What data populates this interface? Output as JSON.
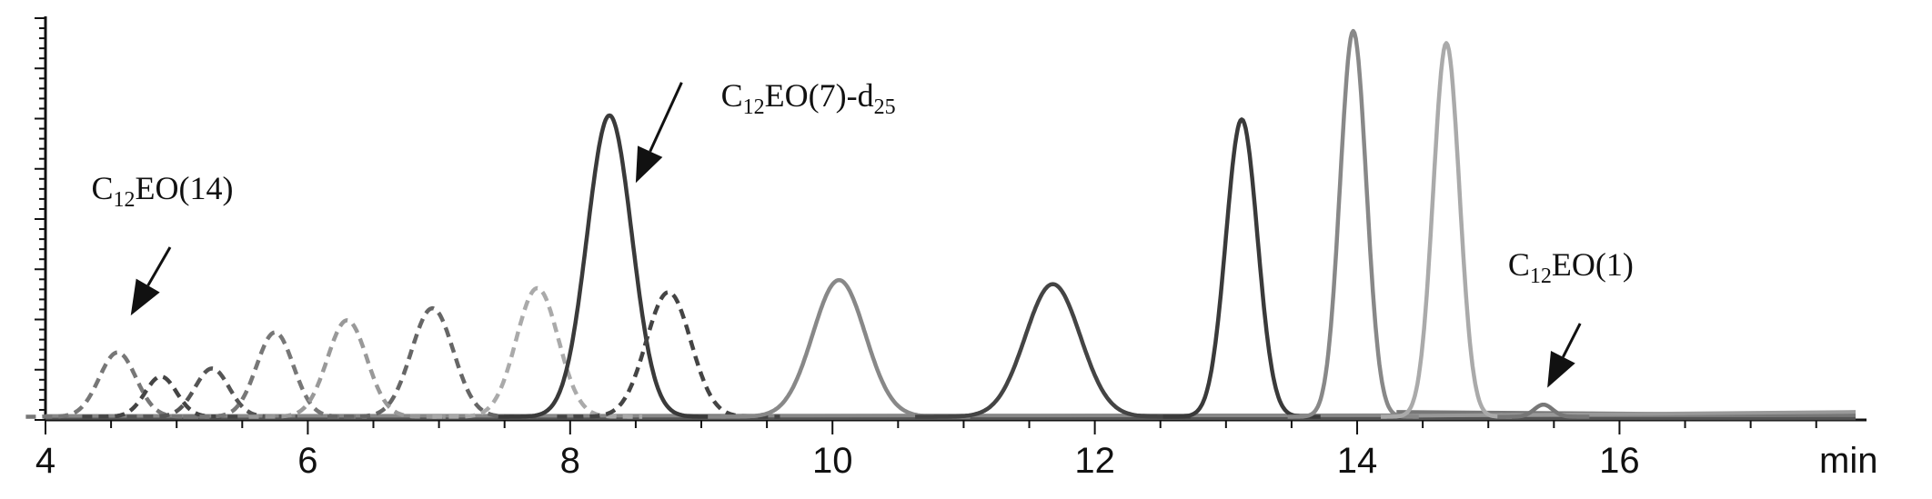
{
  "chart_data": {
    "type": "line",
    "xlabel": "min",
    "ylabel": "",
    "xlim": [
      4,
      17.8
    ],
    "ylim": [
      0,
      1.0
    ],
    "x_ticks": [
      4,
      6,
      8,
      10,
      12,
      14,
      16
    ],
    "x_tick_labels": [
      "4",
      "6",
      "8",
      "10",
      "12",
      "14",
      "16"
    ],
    "grid": false,
    "legend": "none",
    "peaks": [
      {
        "center": 4.55,
        "height": 0.16,
        "width": 0.14,
        "style": "dashed",
        "color": "#777777"
      },
      {
        "center": 4.88,
        "height": 0.1,
        "width": 0.12,
        "style": "dashed",
        "color": "#444444"
      },
      {
        "center": 5.27,
        "height": 0.12,
        "width": 0.13,
        "style": "dashed",
        "color": "#555555"
      },
      {
        "center": 5.75,
        "height": 0.21,
        "width": 0.14,
        "style": "dashed",
        "color": "#777777"
      },
      {
        "center": 6.3,
        "height": 0.24,
        "width": 0.15,
        "style": "dashed",
        "color": "#999999"
      },
      {
        "center": 6.95,
        "height": 0.27,
        "width": 0.16,
        "style": "dashed",
        "color": "#666666"
      },
      {
        "center": 7.75,
        "height": 0.32,
        "width": 0.16,
        "style": "dashed",
        "color": "#aaaaaa"
      },
      {
        "center": 8.3,
        "height": 0.75,
        "width": 0.17,
        "style": "solid",
        "color": "#3a3a3a"
      },
      {
        "center": 8.75,
        "height": 0.31,
        "width": 0.17,
        "style": "dashed",
        "color": "#444444"
      },
      {
        "center": 10.05,
        "height": 0.34,
        "width": 0.2,
        "style": "solid",
        "color": "#888888"
      },
      {
        "center": 11.68,
        "height": 0.33,
        "width": 0.21,
        "style": "solid",
        "color": "#444444"
      },
      {
        "center": 13.12,
        "height": 0.74,
        "width": 0.12,
        "style": "solid",
        "color": "#3a3a3a"
      },
      {
        "center": 13.97,
        "height": 0.96,
        "width": 0.1,
        "style": "solid",
        "color": "#888888"
      },
      {
        "center": 14.68,
        "height": 0.93,
        "width": 0.1,
        "style": "solid",
        "color": "#aaaaaa"
      },
      {
        "center": 15.42,
        "height": 0.03,
        "width": 0.07,
        "style": "solid",
        "color": "#777777"
      }
    ],
    "baseline_traces": [
      {
        "x": [
          4.0,
          17.8
        ],
        "y": [
          0.005,
          0.004
        ],
        "color": "#555555"
      },
      {
        "x": [
          4.0,
          17.8
        ],
        "y": [
          0.01,
          0.012
        ],
        "color": "#888888"
      },
      {
        "x": [
          14.3,
          17.8
        ],
        "y": [
          0.02,
          0.012
        ],
        "color": "#777777"
      },
      {
        "x": [
          14.3,
          17.8
        ],
        "y": [
          0.01,
          0.02
        ],
        "color": "#999999"
      }
    ],
    "annotations": [
      {
        "base": "C",
        "sub1": "12",
        "mid": "EO(14)",
        "sub2": "",
        "tail": "",
        "x": 4.35,
        "y": 0.55,
        "arrow_from": [
          4.95,
          0.43
        ],
        "arrow_to": [
          4.65,
          0.26
        ]
      },
      {
        "base": "C",
        "sub1": "12",
        "mid": "EO(7)-d",
        "sub2": "25",
        "tail": "",
        "x": 9.15,
        "y": 0.78,
        "arrow_from": [
          8.85,
          0.84
        ],
        "arrow_to": [
          8.5,
          0.59
        ]
      },
      {
        "base": "C",
        "sub1": "12",
        "mid": "EO(1)",
        "sub2": "",
        "tail": "",
        "x": 15.15,
        "y": 0.36,
        "arrow_from": [
          15.7,
          0.24
        ],
        "arrow_to": [
          15.45,
          0.08
        ]
      }
    ]
  }
}
